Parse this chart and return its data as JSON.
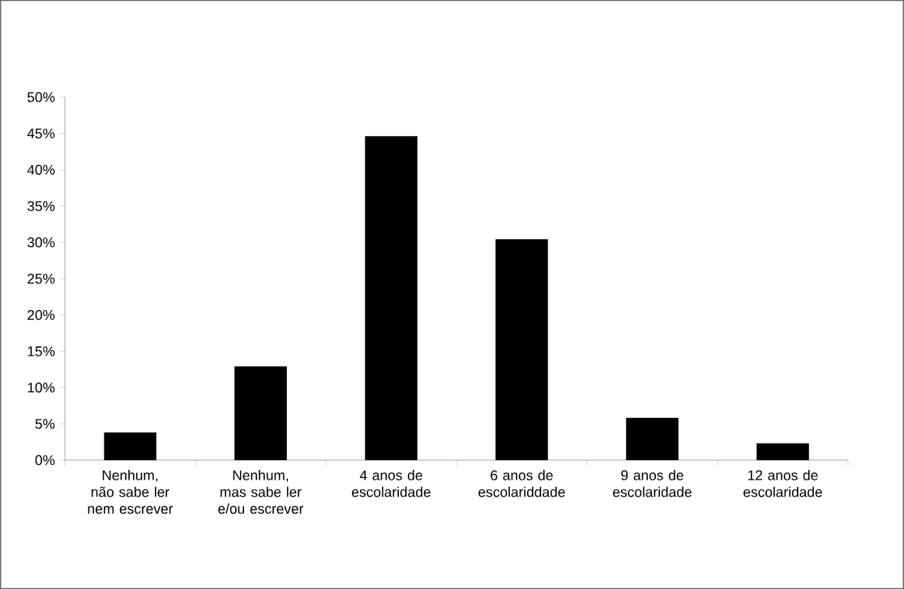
{
  "chart_data": {
    "type": "bar",
    "categories": [
      "Nenhum, não sabe ler nem escrever",
      "Nenhum, mas sabe ler e/ou escrever",
      "4 anos de escolaridade",
      "6 anos de escolariddade",
      "9 anos de escolaridade",
      "12 anos de escolaridade"
    ],
    "values": [
      3.8,
      12.9,
      44.6,
      30.4,
      5.8,
      2.3
    ],
    "color": "#000000",
    "ylim": [
      0,
      50
    ],
    "yticks": [
      {
        "value": 0,
        "label": "0%"
      },
      {
        "value": 5,
        "label": "5%"
      },
      {
        "value": 10,
        "label": "10%"
      },
      {
        "value": 15,
        "label": "15%"
      },
      {
        "value": 20,
        "label": "20%"
      },
      {
        "value": 25,
        "label": "25%"
      },
      {
        "value": 30,
        "label": "30%"
      },
      {
        "value": 35,
        "label": "35%"
      },
      {
        "value": 40,
        "label": "40%"
      },
      {
        "value": 45,
        "label": "45%"
      },
      {
        "value": 50,
        "label": "50%"
      }
    ],
    "grid": false
  }
}
